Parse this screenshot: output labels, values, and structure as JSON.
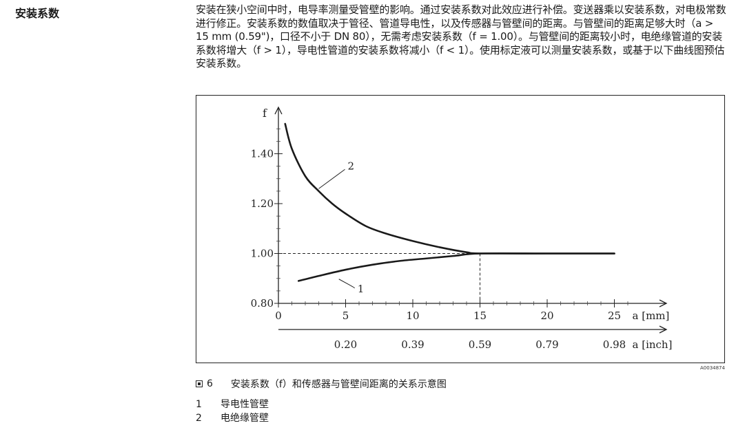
{
  "section": {
    "title": "安装系数",
    "paragraph": "安装在狭小空间中时，电导率测量受管壁的影响。通过安装系数对此效应进行补偿。变送器乘以安装系数，对电极常数进行修正。安装系数的数值取决于管径、管道导电性，以及传感器与管壁间的距离。与管壁间的距离足够大时（a > 15 mm (0.59\")，口径不小于 DN 80），无需考虑安装系数（f = 1.00）。与管壁间的距离较小时，电绝缘管道的安装系数将增大（f > 1），导电性管道的安装系数将减小（f < 1）。使用标定液可以测量安装系数，或基于以下曲线图预估安装系数。"
  },
  "figure": {
    "code": "A0034874",
    "caption_number": "6",
    "caption_text": "安装系数（f）和传感器与管壁间距离的关系示意图"
  },
  "legend": [
    {
      "num": "1",
      "label": "导电性管壁"
    },
    {
      "num": "2",
      "label": "电绝缘管壁"
    }
  ],
  "chart_data": {
    "type": "line",
    "ylabel": "f",
    "xlabel": "a [mm]",
    "x2label": "a [inch]",
    "xlim": [
      0,
      28
    ],
    "ylim": [
      0.8,
      1.6
    ],
    "x_ticks": [
      "0",
      "5",
      "10",
      "15",
      "20",
      "25"
    ],
    "x_tick_values": [
      0,
      5,
      10,
      15,
      20,
      25
    ],
    "x2_ticks": [
      "0.20",
      "0.39",
      "0.59",
      "0.79",
      "0.98"
    ],
    "x2_tick_values": [
      5,
      10,
      15,
      20,
      25
    ],
    "y_ticks": [
      "0.80",
      "1.00",
      "1.20",
      "1.40"
    ],
    "y_tick_values": [
      0.8,
      1.0,
      1.2,
      1.4
    ],
    "reference": {
      "x": 15,
      "y": 1.0
    },
    "series": [
      {
        "name": "1",
        "x": [
          1.5,
          3,
          5,
          7,
          9,
          11,
          13,
          15,
          20,
          25
        ],
        "y": [
          0.89,
          0.91,
          0.935,
          0.955,
          0.97,
          0.98,
          0.99,
          1.0,
          1.0,
          1.0
        ]
      },
      {
        "name": "2",
        "x": [
          0.5,
          1,
          2,
          3,
          4,
          5,
          6.5,
          8,
          10,
          12,
          14,
          15,
          20,
          25
        ],
        "y": [
          1.52,
          1.42,
          1.31,
          1.25,
          1.2,
          1.16,
          1.11,
          1.08,
          1.05,
          1.025,
          1.005,
          1.0,
          1.0,
          1.0
        ]
      }
    ],
    "series_label_anchor": [
      {
        "x": 4.5,
        "y": 0.9
      },
      {
        "x": 3.0,
        "y": 1.26
      }
    ]
  }
}
